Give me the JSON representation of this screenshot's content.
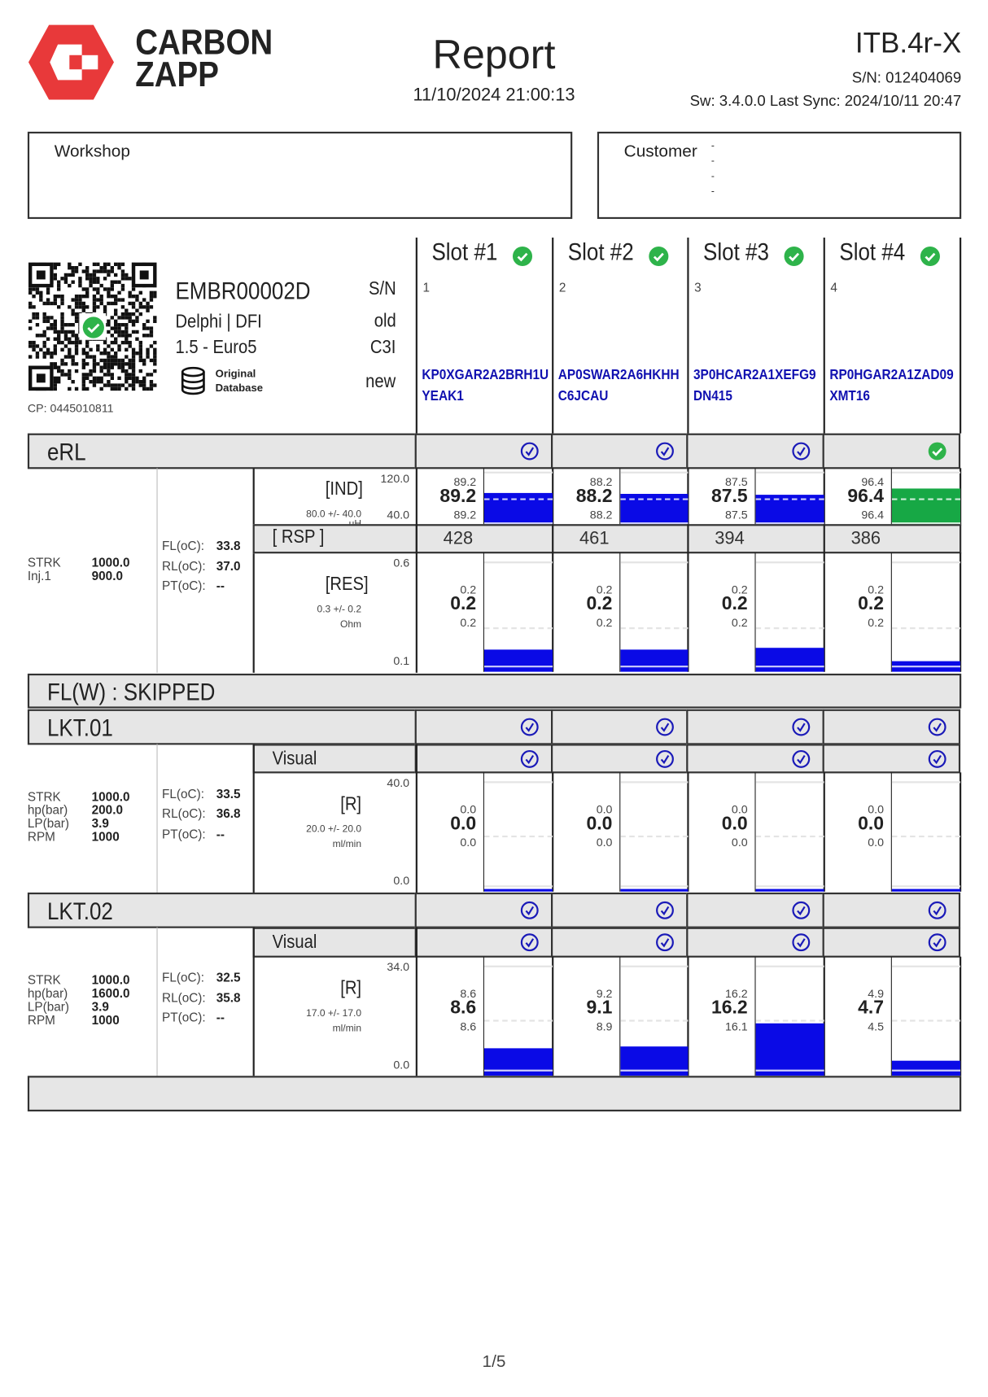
{
  "header": {
    "brand_line1": "CARBON",
    "brand_line2": "ZAPP",
    "title": "Report",
    "datetime": "11/10/2024 21:00:13",
    "device": "ITB.4r-X",
    "serial": "S/N: 012404069",
    "software": "Sw: 3.4.0.0 Last Sync: 2024/10/11 20:47",
    "brand_color": "#e8393a"
  },
  "workshop": {
    "label": "Workshop"
  },
  "customer": {
    "label": "Customer",
    "lines": [
      "-",
      "-",
      "-",
      "-"
    ]
  },
  "injector": {
    "code": "EMBR00002D",
    "maker": "Delphi | DFI",
    "model": "1.5 - Euro5",
    "db_line1": "Original",
    "db_line2": "Database",
    "cp": "CP: 0445010811",
    "sn_label": "S/N",
    "old_label": "old",
    "c3i_label": "C3I",
    "new_label": "new",
    "qr_status": "check-green-icon"
  },
  "slots": [
    {
      "title": "Slot #1",
      "number": "1",
      "code1": "KP0XGAR2A2BRH1U",
      "code2": "YEAK1"
    },
    {
      "title": "Slot #2",
      "number": "2",
      "code1": "AP0SWAR2A6HKHH",
      "code2": "C6JCAU"
    },
    {
      "title": "Slot #3",
      "number": "3",
      "code1": "3P0HCAR2A1XEFG9",
      "code2": "DN415"
    },
    {
      "title": "Slot #4",
      "number": "4",
      "code1": "RP0HGAR2A1ZAD09",
      "code2": "XMT16"
    }
  ],
  "colors": {
    "pass_fill": "#0a0ae6",
    "highlight_fill": "#17a845",
    "check_blue": "#1a1ab8",
    "check_green": "#2eb34a"
  },
  "erl": {
    "title": "eRL",
    "status": [
      "check-blue",
      "check-blue",
      "check-blue",
      "check-green"
    ],
    "params": [
      [
        "STRK",
        "1000.0"
      ],
      [
        "Inj.1",
        "900.0"
      ]
    ],
    "temps": [
      [
        "FL(oC):",
        "33.8"
      ],
      [
        "RL(oC):",
        "37.0"
      ],
      [
        "PT(oC):",
        "--"
      ]
    ],
    "ind": {
      "label": "[IND]",
      "spec": "80.0 +/- 40.0",
      "unit": "uH",
      "max": "120.0",
      "min": "40.0",
      "nominal": 80,
      "values": [
        {
          "top": "89.2",
          "main": "89.2",
          "bottom": "89.2",
          "v": 89.2,
          "fill": "pass"
        },
        {
          "top": "88.2",
          "main": "88.2",
          "bottom": "88.2",
          "v": 88.2,
          "fill": "pass"
        },
        {
          "top": "87.5",
          "main": "87.5",
          "bottom": "87.5",
          "v": 87.5,
          "fill": "pass"
        },
        {
          "top": "96.4",
          "main": "96.4",
          "bottom": "96.4",
          "v": 96.4,
          "fill": "highlight"
        }
      ]
    },
    "rsp": {
      "label": "[ RSP ]",
      "values": [
        "428",
        "461",
        "394",
        "386"
      ]
    },
    "res": {
      "label": "[RES]",
      "spec": "0.3 +/- 0.2",
      "unit": "Ohm",
      "max": "0.6",
      "min": "0.1",
      "nominal": 0.3,
      "values": [
        {
          "top": "0.2",
          "main": "0.2",
          "bottom": "0.2",
          "v": 0.2,
          "fill": "pass"
        },
        {
          "top": "0.2",
          "main": "0.2",
          "bottom": "0.2",
          "v": 0.2,
          "fill": "pass"
        },
        {
          "top": "0.2",
          "main": "0.2",
          "bottom": "0.2",
          "v": 0.21,
          "fill": "pass"
        },
        {
          "top": "0.2",
          "main": "0.2",
          "bottom": "0.2",
          "v": 0.15,
          "fill": "pass"
        }
      ]
    }
  },
  "flw": {
    "title": "FL(W) : SKIPPED"
  },
  "lkt01": {
    "title": "LKT.01",
    "status": [
      "check-blue",
      "check-blue",
      "check-blue",
      "check-blue"
    ],
    "visual_label": "Visual",
    "visual_status": [
      "check-blue",
      "check-blue",
      "check-blue",
      "check-blue"
    ],
    "params": [
      [
        "STRK",
        "1000.0"
      ],
      [
        "hp(bar)",
        "200.0"
      ],
      [
        "LP(bar)",
        "3.9"
      ],
      [
        "RPM",
        "1000"
      ]
    ],
    "temps": [
      [
        "FL(oC):",
        "33.5"
      ],
      [
        "RL(oC):",
        "36.8"
      ],
      [
        "PT(oC):",
        "--"
      ]
    ],
    "r": {
      "label": "[R]",
      "spec": "20.0 +/- 20.0",
      "unit": "ml/min",
      "max": "40.0",
      "min": "0.0",
      "nominal": 20,
      "values": [
        {
          "top": "0.0",
          "main": "0.0",
          "bottom": "0.0",
          "v": 0,
          "fill": "pass"
        },
        {
          "top": "0.0",
          "main": "0.0",
          "bottom": "0.0",
          "v": 0,
          "fill": "pass"
        },
        {
          "top": "0.0",
          "main": "0.0",
          "bottom": "0.0",
          "v": 0,
          "fill": "pass"
        },
        {
          "top": "0.0",
          "main": "0.0",
          "bottom": "0.0",
          "v": 0,
          "fill": "pass"
        }
      ]
    }
  },
  "lkt02": {
    "title": "LKT.02",
    "status": [
      "check-blue",
      "check-blue",
      "check-blue",
      "check-blue"
    ],
    "visual_label": "Visual",
    "visual_status": [
      "check-blue",
      "check-blue",
      "check-blue",
      "check-blue"
    ],
    "params": [
      [
        "STRK",
        "1000.0"
      ],
      [
        "hp(bar)",
        "1600.0"
      ],
      [
        "LP(bar)",
        "3.9"
      ],
      [
        "RPM",
        "1000"
      ]
    ],
    "temps": [
      [
        "FL(oC):",
        "32.5"
      ],
      [
        "RL(oC):",
        "35.8"
      ],
      [
        "PT(oC):",
        "--"
      ]
    ],
    "r": {
      "label": "[R]",
      "spec": "17.0 +/- 17.0",
      "unit": "ml/min",
      "max": "34.0",
      "min": "0.0",
      "nominal": 17,
      "values": [
        {
          "top": "8.6",
          "main": "8.6",
          "bottom": "8.6",
          "v": 8.6,
          "fill": "pass"
        },
        {
          "top": "9.2",
          "main": "9.1",
          "bottom": "8.9",
          "v": 9.1,
          "fill": "pass"
        },
        {
          "top": "16.2",
          "main": "16.2",
          "bottom": "16.1",
          "v": 16.2,
          "fill": "pass"
        },
        {
          "top": "4.9",
          "main": "4.7",
          "bottom": "4.5",
          "v": 4.7,
          "fill": "pass"
        }
      ]
    }
  },
  "footer": {
    "page": "1/5"
  }
}
